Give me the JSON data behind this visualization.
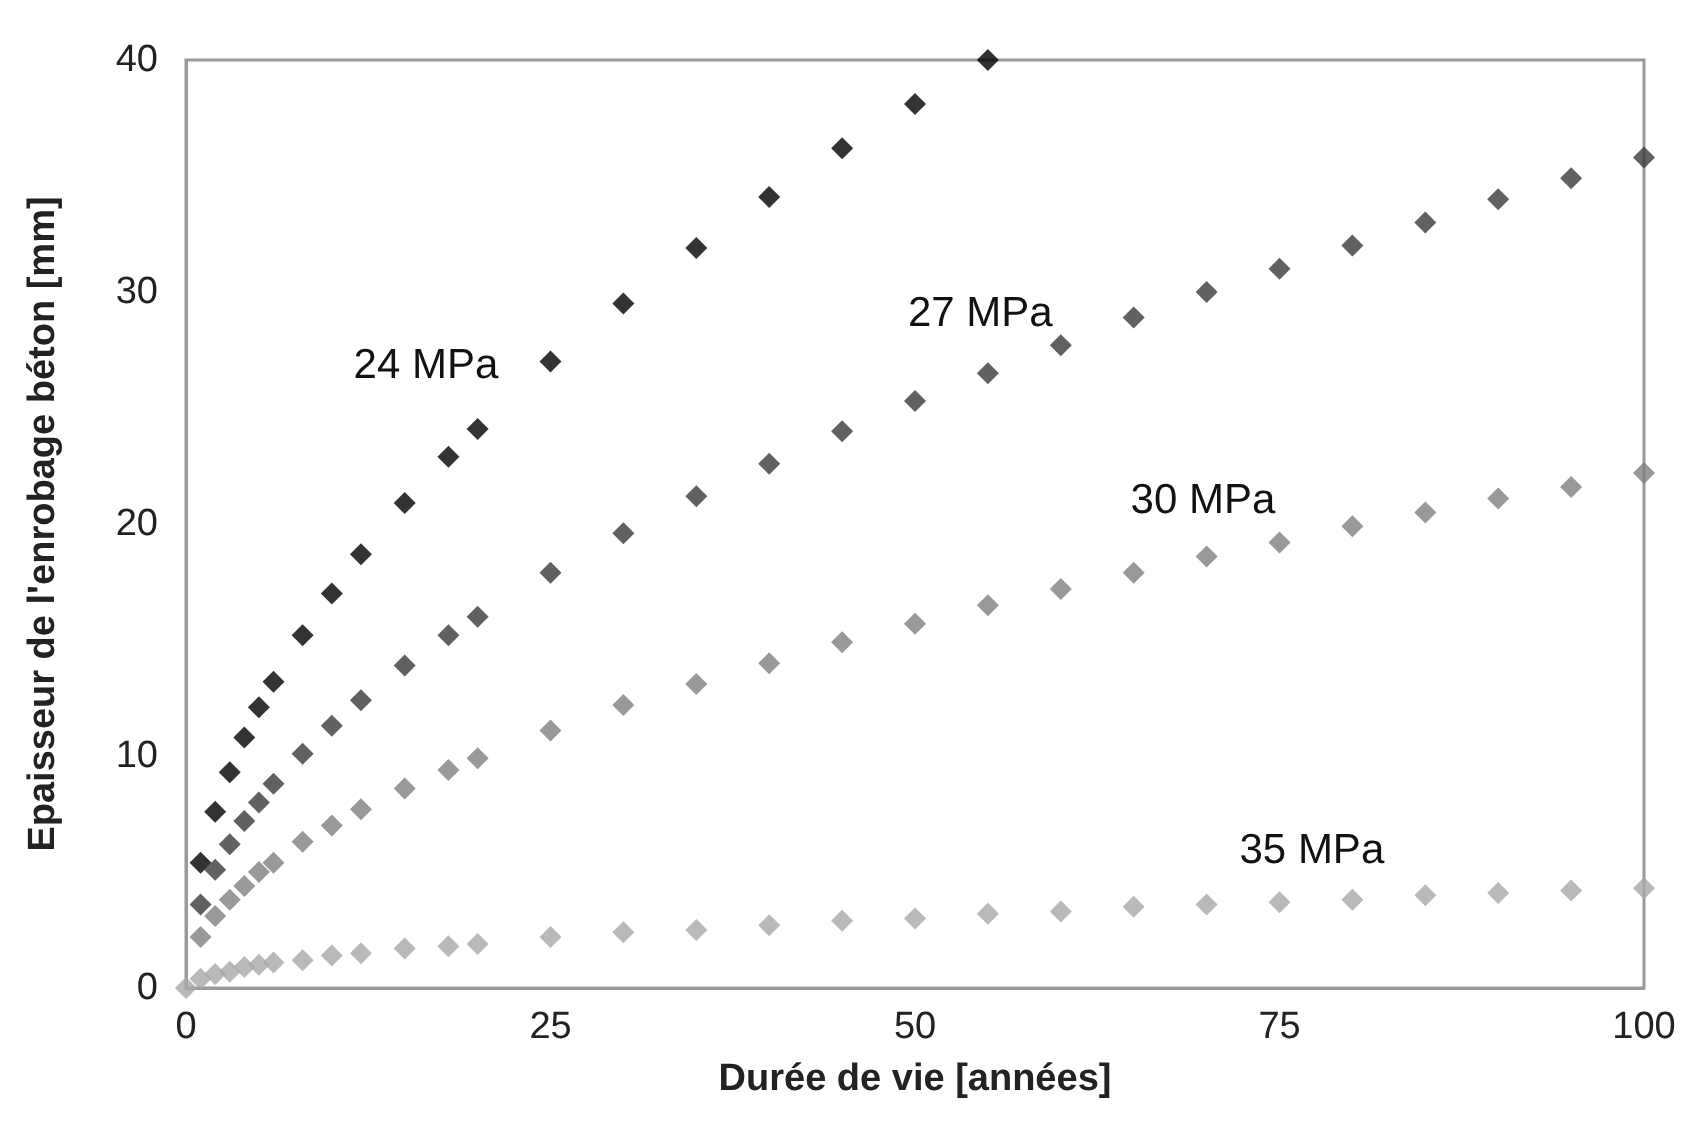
{
  "chart_data": {
    "type": "scatter",
    "xlabel": "Durée de vie [années]",
    "ylabel": "Epaisseur de l'enrobage béton [mm]",
    "xlim": [
      0,
      100
    ],
    "xticks": [
      0,
      25,
      50,
      75,
      100
    ],
    "ylim": [
      0,
      40
    ],
    "yticks": [
      0,
      10,
      20,
      30,
      40
    ],
    "grid": false,
    "legend": false,
    "marker": "diamond",
    "series": [
      {
        "name": "24 MPa",
        "color": "#000000",
        "x": [
          1,
          2,
          3,
          4,
          5,
          6,
          8,
          10,
          12,
          15,
          18,
          20,
          25,
          30,
          35,
          40,
          45,
          50,
          55
        ],
        "values": [
          5.4,
          7.6,
          9.3,
          10.8,
          12.1,
          13.2,
          15.2,
          17.0,
          18.7,
          20.9,
          22.9,
          24.1,
          27.0,
          29.5,
          31.9,
          34.1,
          36.2,
          38.1,
          40.0
        ]
      },
      {
        "name": "27 MPa",
        "color": "#3a3a3a",
        "x": [
          1,
          2,
          3,
          4,
          5,
          6,
          8,
          10,
          12,
          15,
          18,
          20,
          25,
          30,
          35,
          40,
          45,
          50,
          55,
          60,
          65,
          70,
          75,
          80,
          85,
          90,
          95,
          100
        ],
        "values": [
          3.6,
          5.1,
          6.2,
          7.2,
          8.0,
          8.8,
          10.1,
          11.3,
          12.4,
          13.9,
          15.2,
          16.0,
          17.9,
          19.6,
          21.2,
          22.6,
          24.0,
          25.3,
          26.5,
          27.7,
          28.9,
          30.0,
          31.0,
          32.0,
          33.0,
          34.0,
          34.9,
          35.8
        ]
      },
      {
        "name": "30 MPa",
        "color": "#808080",
        "x": [
          1,
          2,
          3,
          4,
          5,
          6,
          8,
          10,
          12,
          15,
          18,
          20,
          25,
          30,
          35,
          40,
          45,
          50,
          55,
          60,
          65,
          70,
          75,
          80,
          85,
          90,
          95,
          100
        ],
        "values": [
          2.2,
          3.1,
          3.8,
          4.4,
          5.0,
          5.4,
          6.3,
          7.0,
          7.7,
          8.6,
          9.4,
          9.9,
          11.1,
          12.2,
          13.1,
          14.0,
          14.9,
          15.7,
          16.5,
          17.2,
          17.9,
          18.6,
          19.2,
          19.9,
          20.5,
          21.1,
          21.6,
          22.2
        ]
      },
      {
        "name": "35 MPa",
        "color": "#a8a8a8",
        "x": [
          0,
          1,
          2,
          3,
          4,
          5,
          6,
          8,
          10,
          12,
          15,
          18,
          20,
          25,
          30,
          35,
          40,
          45,
          50,
          55,
          60,
          65,
          70,
          75,
          80,
          85,
          90,
          95,
          100
        ],
        "values": [
          0,
          0.4,
          0.6,
          0.7,
          0.9,
          1.0,
          1.1,
          1.2,
          1.4,
          1.5,
          1.7,
          1.8,
          1.9,
          2.2,
          2.4,
          2.5,
          2.7,
          2.9,
          3.0,
          3.2,
          3.3,
          3.5,
          3.6,
          3.7,
          3.8,
          4.0,
          4.1,
          4.2,
          4.3
        ]
      }
    ]
  }
}
